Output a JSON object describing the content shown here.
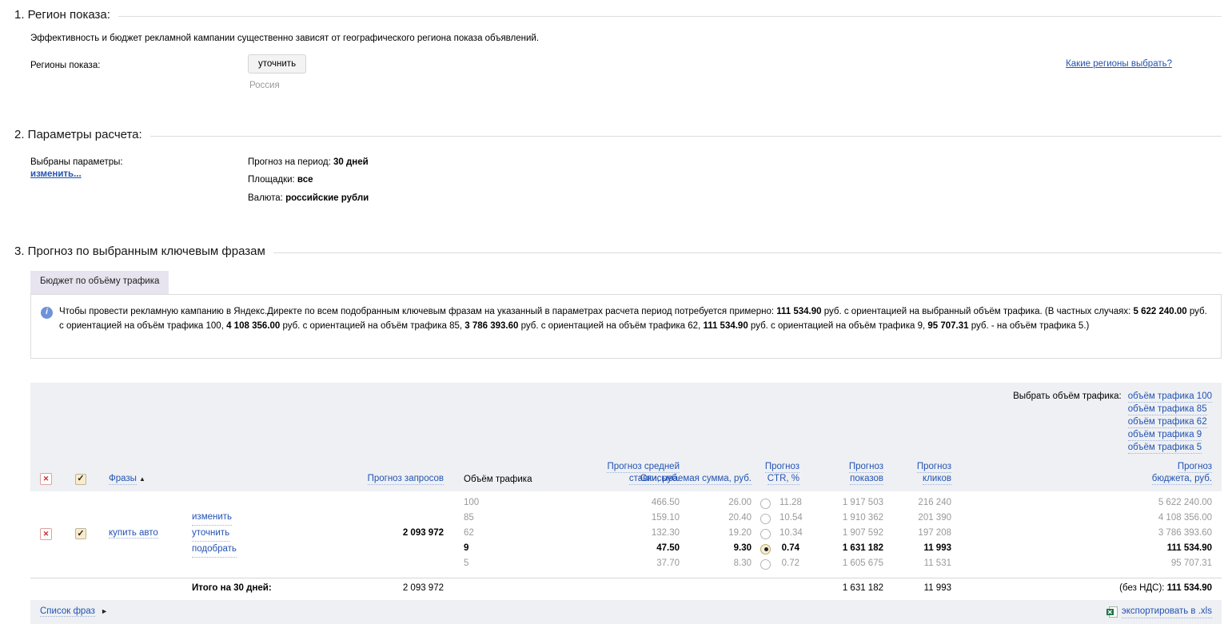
{
  "icons": {
    "delete": "✕",
    "check": "✓",
    "info": "i",
    "sort_asc": "▲",
    "arrow_right": "►"
  },
  "section1": {
    "title": "1. Регион показа:",
    "description": "Эффективность и бюджет рекламной кампании существенно зависят от географического региона показа объявлений.",
    "regions_label": "Регионы показа:",
    "refine_button": "уточнить",
    "region_value": "Россия",
    "help_link": "Какие регионы выбрать?"
  },
  "section2": {
    "title": "2. Параметры расчета:",
    "chosen_label": "Выбраны параметры:",
    "change_link": "изменить...",
    "params": [
      {
        "label": "Прогноз на период:",
        "value": "30 дней"
      },
      {
        "label": "Площадки:",
        "value": "все"
      },
      {
        "label": "Валюта:",
        "value": "российские рубли"
      }
    ]
  },
  "section3": {
    "title": "3. Прогноз по выбранным ключевым фразам",
    "tab": "Бюджет по объёму трафика",
    "info": {
      "segments": [
        {
          "t": "Чтобы провести рекламную кампанию в Яндекс.Директе по всем подобранным ключевым фразам на указанный в параметрах расчета период потребуется примерно: "
        },
        {
          "b": "111 534.90"
        },
        {
          "t": " руб. с ориентацией на выбранный объём трафика. (В частных случаях: "
        },
        {
          "b": "5 622 240.00"
        },
        {
          "t": " руб. с ориентацией на объём трафика 100, "
        },
        {
          "b": "4 108 356.00"
        },
        {
          "t": " руб. с ориентацией на объём трафика 85, "
        },
        {
          "b": "3 786 393.60"
        },
        {
          "t": " руб. с ориентацией на объём трафика 62, "
        },
        {
          "b": "111 534.90"
        },
        {
          "t": " руб. с ориентацией на объём трафика 9, "
        },
        {
          "b": "95 707.31"
        },
        {
          "t": " руб. - на объём трафика 5.)"
        }
      ]
    }
  },
  "table": {
    "select_traffic_label": "Выбрать объём трафика:",
    "traffic_links": [
      "объём трафика 100",
      "объём трафика 85",
      "объём трафика 62",
      "объём трафика 9",
      "объём трафика 5"
    ],
    "headers": {
      "phrases": "Фразы",
      "forecast_queries": "Прогноз запросов",
      "traffic_volume": "Объём трафика",
      "avg_bid": {
        "line1": "Прогноз средней",
        "line2": "ставки, руб."
      },
      "writeoff": "Списываемая сумма, руб.",
      "ctr": {
        "line1": "Прогноз",
        "line2": "CTR, %"
      },
      "impressions": {
        "line1": "Прогноз",
        "line2": "показов"
      },
      "clicks": {
        "line1": "Прогноз",
        "line2": "кликов"
      },
      "budget": {
        "line1": "Прогноз",
        "line2": "бюджета, руб."
      }
    },
    "row": {
      "phrase": "купить авто",
      "actions": [
        "изменить",
        "уточнить",
        "подобрать"
      ],
      "forecast_queries": "2 093 972",
      "variants": [
        {
          "traffic": "100",
          "bid": "466.50",
          "writeoff": "26.00",
          "ctr": "11.28",
          "impressions": "1 917 503",
          "clicks": "216 240",
          "budget": "5 622 240.00",
          "selected": false
        },
        {
          "traffic": "85",
          "bid": "159.10",
          "writeoff": "20.40",
          "ctr": "10.54",
          "impressions": "1 910 362",
          "clicks": "201 390",
          "budget": "4 108 356.00",
          "selected": false
        },
        {
          "traffic": "62",
          "bid": "132.30",
          "writeoff": "19.20",
          "ctr": "10.34",
          "impressions": "1 907 592",
          "clicks": "197 208",
          "budget": "3 786 393.60",
          "selected": false
        },
        {
          "traffic": "9",
          "bid": "47.50",
          "writeoff": "9.30",
          "ctr": "0.74",
          "impressions": "1 631 182",
          "clicks": "11 993",
          "budget": "111 534.90",
          "selected": true
        },
        {
          "traffic": "5",
          "bid": "37.70",
          "writeoff": "8.30",
          "ctr": "0.72",
          "impressions": "1 605 675",
          "clicks": "11 531",
          "budget": "95 707.31",
          "selected": false
        }
      ]
    },
    "totals": {
      "label": "Итого на 30 дней:",
      "queries": "2 093 972",
      "impressions": "1 631 182",
      "clicks": "11 993",
      "budget_prefix": "(без НДС): ",
      "budget_value": "111 534.90"
    },
    "footer": {
      "phrase_list": "Список фраз",
      "export": "экспортировать в .xls"
    }
  }
}
